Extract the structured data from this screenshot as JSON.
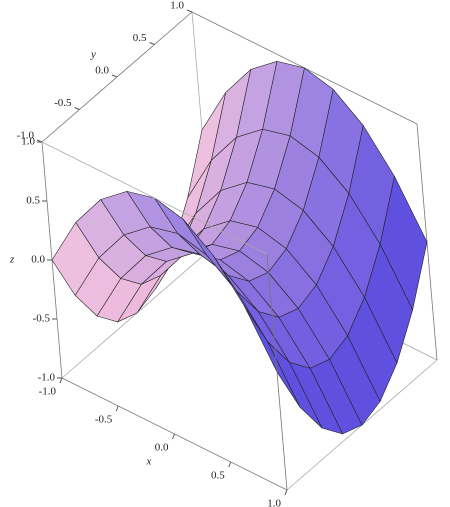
{
  "chart_data": {
    "type": "surface",
    "x_label": "x",
    "y_label": "y",
    "z_label": "z",
    "x": [
      -1,
      -0.75,
      -0.5,
      -0.25,
      0,
      0.25,
      0.5,
      0.75,
      1
    ],
    "y": [
      -1,
      -0.75,
      -0.5,
      -0.25,
      0,
      0.25,
      0.5,
      0.75,
      1
    ],
    "z": [
      [
        0,
        0.4375,
        0.75,
        0.9375,
        1,
        0.9375,
        0.75,
        0.4375,
        0
      ],
      [
        -0.4375,
        0,
        0.3125,
        0.5,
        0.5625,
        0.5,
        0.3125,
        0,
        -0.4375
      ],
      [
        -0.75,
        -0.3125,
        0,
        0.1875,
        0.25,
        0.1875,
        0,
        -0.3125,
        -0.75
      ],
      [
        -0.9375,
        -0.5,
        -0.1875,
        0,
        0.0625,
        0,
        -0.1875,
        -0.5,
        -0.9375
      ],
      [
        -1,
        -0.5625,
        -0.25,
        -0.0625,
        0,
        -0.0625,
        -0.25,
        -0.5625,
        -1
      ],
      [
        -0.9375,
        -0.5,
        -0.1875,
        0,
        0.0625,
        0,
        -0.1875,
        -0.5,
        -0.9375
      ],
      [
        -0.75,
        -0.3125,
        0,
        0.1875,
        0.25,
        0.1875,
        0,
        -0.3125,
        -0.75
      ],
      [
        -0.4375,
        0,
        0.3125,
        0.5,
        0.5625,
        0.5,
        0.3125,
        0,
        -0.4375
      ],
      [
        0,
        0.4375,
        0.75,
        0.9375,
        1,
        0.9375,
        0.75,
        0.4375,
        0
      ]
    ],
    "xlim": [
      -1,
      1
    ],
    "ylim": [
      -1,
      1
    ],
    "zlim": [
      -1,
      1
    ],
    "xticks": [
      {
        "value": -1,
        "label": "-1.0"
      },
      {
        "value": -0.5,
        "label": "-0.5"
      },
      {
        "value": 0,
        "label": "0.0"
      },
      {
        "value": 0.5,
        "label": "0.5"
      },
      {
        "value": 1,
        "label": "1.0"
      }
    ],
    "yticks": [
      {
        "value": -1,
        "label": "-1.0"
      },
      {
        "value": -0.5,
        "label": "-0.5"
      },
      {
        "value": 0,
        "label": "0.0"
      },
      {
        "value": 0.5,
        "label": "0.5"
      },
      {
        "value": 1,
        "label": "1.0"
      }
    ],
    "zticks": [
      {
        "value": -1,
        "label": "-1.0"
      },
      {
        "value": -0.5,
        "label": "-0.5"
      },
      {
        "value": 0,
        "label": "0.0"
      },
      {
        "value": 0.5,
        "label": "0.5"
      },
      {
        "value": 1,
        "label": "1.0"
      }
    ],
    "colors": [
      "#f7c0dc",
      "#5548e0"
    ]
  }
}
